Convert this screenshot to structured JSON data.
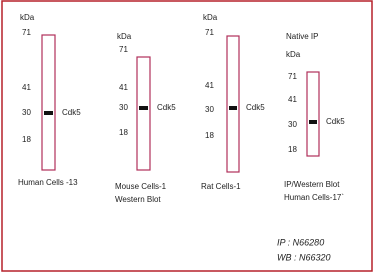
{
  "panels": [
    {
      "unit": "kDa",
      "markers": [
        "71",
        "41",
        "30",
        "18"
      ],
      "band_label": "Cdk5",
      "caption": [
        "Human Cells -13"
      ]
    },
    {
      "unit": "kDa",
      "markers": [
        "71",
        "41",
        "30",
        "18"
      ],
      "band_label": "Cdk5",
      "caption": [
        "Mouse Cells-1",
        "Western Blot"
      ]
    },
    {
      "unit": "kDa",
      "markers": [
        "71",
        "41",
        "30",
        "18"
      ],
      "band_label": "Cdk5",
      "caption": [
        "Rat Cells-1"
      ]
    },
    {
      "heading": "Native IP",
      "unit": "kDa",
      "markers": [
        "71",
        "41",
        "30",
        "18"
      ],
      "band_label": "Cdk5",
      "caption": [
        "IP/Western Blot",
        "Human Cells-17`"
      ]
    }
  ],
  "footnote": [
    "IP : N66280",
    "WB : N66320"
  ]
}
